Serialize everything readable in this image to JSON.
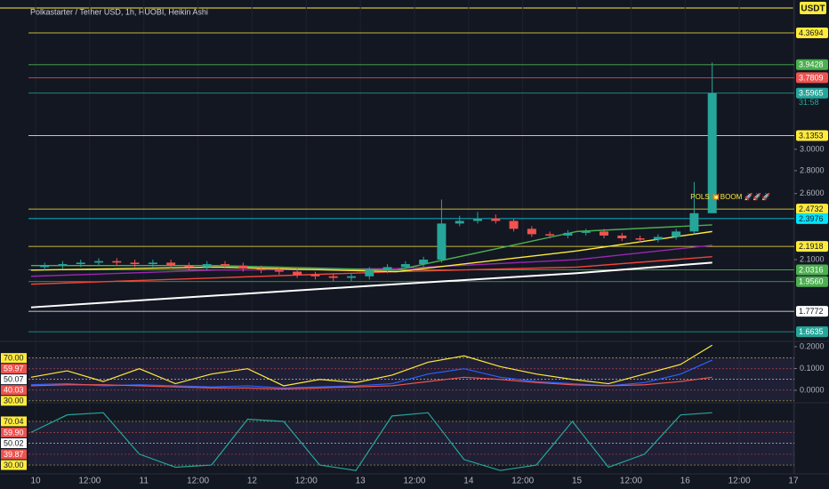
{
  "chart_data": {
    "type": "candlestick",
    "title": "Polkastarter / Tether USD, 1h, HUOBI, Heikin Ashi",
    "currency": "USDT",
    "countdown": "31:58",
    "annotation": "POLS 💥BOOM 🚀🚀🚀",
    "log_scale": true,
    "xlim": [
      -1.58,
      168.2
    ],
    "ylim": [
      1.617,
      4.86
    ],
    "xticks": [
      {
        "value": 0,
        "label": "10"
      },
      {
        "value": 12,
        "label": "12:00"
      },
      {
        "value": 24,
        "label": "11"
      },
      {
        "value": 36,
        "label": "12:00"
      },
      {
        "value": 48,
        "label": "12"
      },
      {
        "value": 60,
        "label": "12:00"
      },
      {
        "value": 72,
        "label": "13"
      },
      {
        "value": 84,
        "label": "12:00"
      },
      {
        "value": 96,
        "label": "14"
      },
      {
        "value": 108,
        "label": "12:00"
      },
      {
        "value": 120,
        "label": "15"
      },
      {
        "value": 132,
        "label": "12:00"
      },
      {
        "value": 144,
        "label": "16"
      },
      {
        "value": 156,
        "label": "12:00"
      },
      {
        "value": 168,
        "label": "17"
      }
    ],
    "yticks": [
      {
        "value": 3,
        "label": "3.0000"
      },
      {
        "value": 2.8,
        "label": "2.8000"
      },
      {
        "value": 2.6,
        "label": "2.6000"
      },
      {
        "value": 2.1,
        "label": "2.1000"
      }
    ],
    "levels": [
      {
        "value": 4.3694,
        "color": "#ffeb3b"
      },
      {
        "value": 3.9428,
        "color": "#4caf50"
      },
      {
        "value": 3.7809,
        "color": "#ef5350"
      },
      {
        "value": 3.5965,
        "color": "#26a69a"
      },
      {
        "value": 3.1353,
        "color": "#ffeb3b"
      },
      {
        "value": 2.4732,
        "color": "#ffeb3b"
      },
      {
        "value": 2.3976,
        "color": "#00e5ff"
      },
      {
        "value": 2.1918,
        "color": "#ffeb3b"
      },
      {
        "value": 2.0316,
        "color": "#4caf50"
      },
      {
        "value": 1.956,
        "label": "1.9560",
        "color": "#4caf50"
      },
      {
        "value": 1.7772,
        "color": "#ffffff"
      },
      {
        "value": 1.6635,
        "color": "#26a69a"
      }
    ],
    "up_color": "#26a69a",
    "down_color": "#ef5350",
    "candles": {
      "x": [
        2,
        6,
        10,
        14,
        18,
        22,
        26,
        30,
        34,
        38,
        42,
        46,
        50,
        54,
        58,
        62,
        66,
        70,
        74,
        78,
        82,
        86,
        90,
        94,
        98,
        102,
        106,
        110,
        114,
        118,
        122,
        126,
        130,
        134,
        138,
        142,
        146,
        150
      ],
      "open": [
        2.05,
        2.06,
        2.07,
        2.08,
        2.09,
        2.08,
        2.07,
        2.08,
        2.06,
        2.05,
        2.07,
        2.06,
        2.04,
        2.03,
        2.02,
        2.0,
        1.99,
        1.98,
        1.99,
        2.03,
        2.05,
        2.07,
        2.1,
        2.36,
        2.38,
        2.4,
        2.38,
        2.32,
        2.28,
        2.27,
        2.29,
        2.3,
        2.27,
        2.25,
        2.24,
        2.26,
        2.3,
        2.44
      ],
      "high": [
        2.08,
        2.09,
        2.1,
        2.11,
        2.11,
        2.1,
        2.1,
        2.1,
        2.08,
        2.09,
        2.09,
        2.08,
        2.06,
        2.05,
        2.04,
        2.02,
        2.01,
        2.01,
        2.05,
        2.07,
        2.09,
        2.12,
        2.55,
        2.42,
        2.45,
        2.43,
        2.4,
        2.34,
        2.3,
        2.31,
        2.32,
        2.32,
        2.29,
        2.27,
        2.28,
        2.32,
        2.7,
        3.97
      ],
      "low": [
        2.03,
        2.04,
        2.05,
        2.06,
        2.06,
        2.05,
        2.05,
        2.04,
        2.03,
        2.03,
        2.04,
        2.02,
        2.01,
        2.0,
        1.98,
        1.97,
        1.96,
        1.96,
        1.97,
        2.01,
        2.03,
        2.05,
        2.08,
        2.34,
        2.36,
        2.36,
        2.3,
        2.26,
        2.25,
        2.25,
        2.27,
        2.25,
        2.23,
        2.22,
        2.22,
        2.24,
        2.28,
        2.55
      ],
      "close": [
        2.06,
        2.07,
        2.08,
        2.09,
        2.08,
        2.07,
        2.08,
        2.06,
        2.05,
        2.07,
        2.06,
        2.04,
        2.03,
        2.02,
        2.0,
        1.99,
        1.98,
        1.99,
        2.03,
        2.05,
        2.07,
        2.1,
        2.36,
        2.38,
        2.4,
        2.38,
        2.32,
        2.28,
        2.27,
        2.29,
        2.3,
        2.27,
        2.25,
        2.24,
        2.26,
        2.3,
        2.44,
        3.6
      ]
    },
    "ma_x": [
      -1,
      40,
      80,
      120,
      150
    ],
    "moving_averages": [
      {
        "color": "#ffffff",
        "values": [
          1.8,
          1.87,
          1.94,
          2.01,
          2.08
        ]
      },
      {
        "color": "#f44336",
        "values": [
          1.94,
          1.98,
          2.02,
          2.05,
          2.12
        ]
      },
      {
        "color": "#9c27b0",
        "values": [
          1.99,
          2.03,
          2.04,
          2.1,
          2.2
        ]
      },
      {
        "color": "#ffeb3b",
        "values": [
          2.03,
          2.05,
          2.02,
          2.16,
          2.3
        ]
      },
      {
        "color": "#4caf50",
        "values": [
          2.06,
          2.06,
          2.03,
          2.3,
          2.35
        ]
      }
    ],
    "oscillator_x": [
      -1,
      7,
      15,
      23,
      31,
      39,
      47,
      55,
      63,
      71,
      79,
      87,
      95,
      103,
      111,
      119,
      127,
      135,
      143,
      150
    ],
    "pane2": {
      "ylim": [
        29,
        83
      ],
      "levels": [
        {
          "value": 70,
          "label": "70.00",
          "color": "#ffeb3b"
        },
        {
          "value": 59.97,
          "color": "#ef5350"
        },
        {
          "value": 50.07,
          "color": "#ffffff"
        },
        {
          "value": 40.03,
          "color": "#ef5350"
        },
        {
          "value": 30,
          "label": "30.00",
          "color": "#ffeb3b"
        }
      ],
      "y2lim": [
        -0.053,
        0.212
      ],
      "y2ticks": [
        {
          "value": 0.2,
          "label": "0.2000"
        },
        {
          "value": 0.1,
          "label": "0.1000"
        },
        {
          "value": 0,
          "label": "0.0000"
        }
      ],
      "series": [
        {
          "color": "#ffeb3b",
          "values": [
            52,
            58,
            48,
            60,
            46,
            55,
            60,
            44,
            50,
            47,
            54,
            66,
            72,
            62,
            55,
            50,
            46,
            55,
            64,
            82
          ]
        },
        {
          "color": "#2962ff",
          "values": [
            45,
            46,
            44,
            45,
            44,
            43,
            44,
            42,
            43,
            44,
            46,
            55,
            60,
            52,
            48,
            46,
            44,
            47,
            55,
            68
          ]
        },
        {
          "color": "#ef5350",
          "values": [
            44,
            45,
            45,
            44,
            43,
            42,
            42,
            41,
            42,
            43,
            44,
            48,
            52,
            50,
            47,
            45,
            44,
            45,
            48,
            52
          ]
        }
      ]
    },
    "pane3": {
      "ylim": [
        22.7,
        85.5
      ],
      "levels": [
        {
          "value": 70.04,
          "color": "#ffeb3b"
        },
        {
          "value": 59.9,
          "label": "59.90",
          "color": "#ef5350"
        },
        {
          "value": 50.02,
          "color": "#ffffff"
        },
        {
          "value": 39.87,
          "color": "#ef5350"
        },
        {
          "value": 30,
          "label": "30.00",
          "color": "#ffeb3b"
        }
      ],
      "series": [
        {
          "color": "#26a69a",
          "values": [
            60,
            76,
            78,
            40,
            28,
            30,
            72,
            70,
            30,
            25,
            75,
            78,
            35,
            25,
            30,
            70,
            28,
            40,
            76,
            78
          ]
        }
      ]
    }
  }
}
